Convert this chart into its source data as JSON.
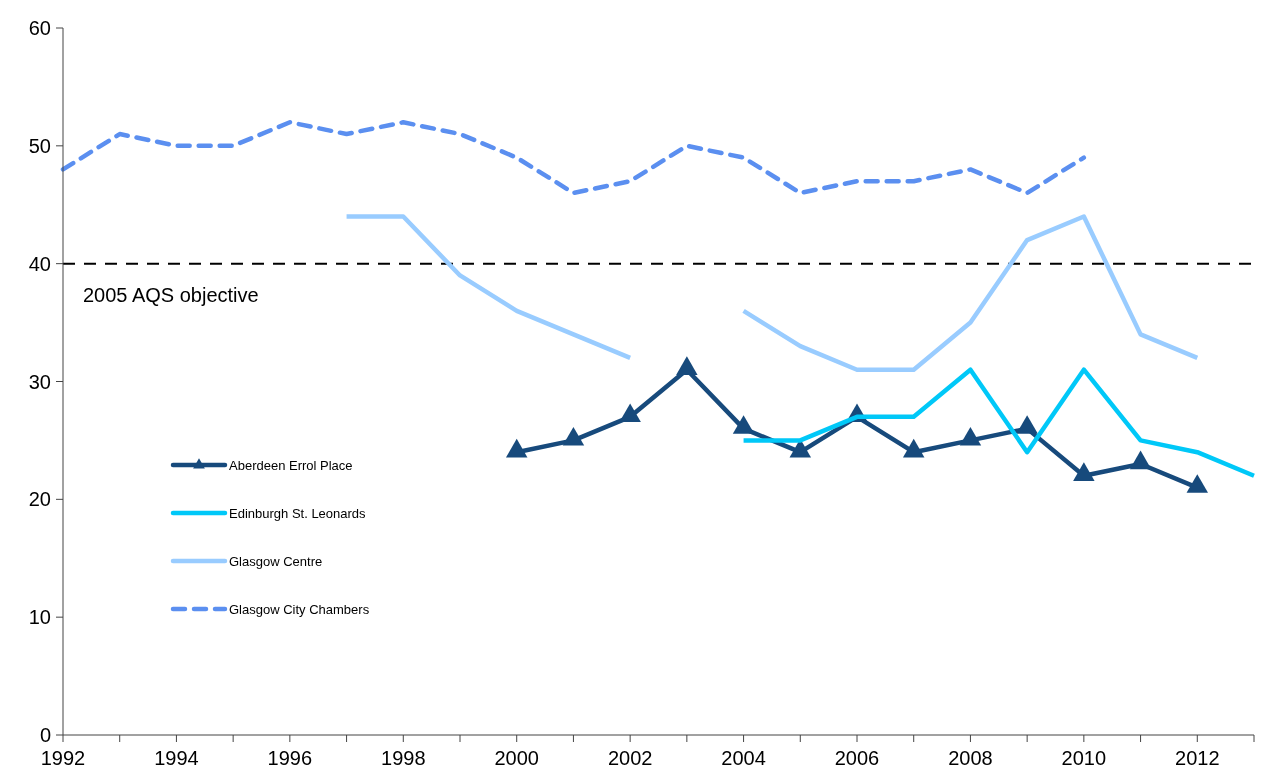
{
  "chart_data": {
    "type": "line",
    "x": [
      1992,
      1993,
      1994,
      1995,
      1996,
      1997,
      1998,
      1999,
      2000,
      2001,
      2002,
      2003,
      2004,
      2005,
      2006,
      2007,
      2008,
      2009,
      2010,
      2011,
      2012,
      2013
    ],
    "series": [
      {
        "name": "Aberdeen Errol Place",
        "color": "#174a7c",
        "marker": "triangle",
        "line_style": "solid",
        "values": [
          null,
          null,
          null,
          null,
          null,
          null,
          null,
          null,
          24,
          25,
          27,
          31,
          26,
          24,
          27,
          24,
          25,
          26,
          22,
          23,
          21,
          null
        ]
      },
      {
        "name": "Edinburgh St. Leonards",
        "color": "#00c8f8",
        "marker": "none",
        "line_style": "solid",
        "values": [
          null,
          null,
          null,
          null,
          null,
          null,
          null,
          null,
          null,
          null,
          null,
          null,
          25,
          25,
          27,
          27,
          31,
          24,
          31,
          25,
          24,
          22
        ]
      },
      {
        "name": "Glasgow Centre",
        "color": "#99ccff",
        "marker": "none",
        "line_style": "solid",
        "values": [
          null,
          null,
          null,
          null,
          null,
          44,
          44,
          39,
          36,
          34,
          32,
          null,
          36,
          33,
          31,
          31,
          35,
          42,
          44,
          34,
          32,
          null
        ]
      },
      {
        "name": "Glasgow City Chambers",
        "color": "#5b8ff0",
        "marker": "none",
        "line_style": "dashed",
        "values": [
          48,
          51,
          50,
          50,
          52,
          51,
          52,
          51,
          49,
          46,
          47,
          50,
          49,
          46,
          47,
          47,
          48,
          46,
          49,
          null,
          null,
          null
        ]
      }
    ],
    "xlim": [
      1992,
      2013
    ],
    "xticks": [
      1992,
      {
        "value": 1993,
        "label": null
      },
      1994,
      {
        "value": 1995,
        "label": null
      },
      1996,
      {
        "value": 1997,
        "label": null
      },
      1998,
      {
        "value": 1999,
        "label": null
      },
      2000,
      {
        "value": 2001,
        "label": null
      },
      2002,
      {
        "value": 2003,
        "label": null
      },
      2004,
      {
        "value": 2005,
        "label": null
      },
      2006,
      {
        "value": 2007,
        "label": null
      },
      2008,
      {
        "value": 2009,
        "label": null
      },
      2010,
      {
        "value": 2011,
        "label": null
      },
      2012,
      {
        "value": 2013,
        "label": null
      }
    ],
    "ylim": [
      0,
      60
    ],
    "yticks": [
      0,
      10,
      20,
      30,
      40,
      50,
      60
    ],
    "ref_lines": [
      {
        "axis": "y",
        "value": 40,
        "label": "2005 AQS objective",
        "color": "#000000",
        "line_style": "dashed"
      }
    ],
    "legend": "bottom left",
    "grid": false
  }
}
